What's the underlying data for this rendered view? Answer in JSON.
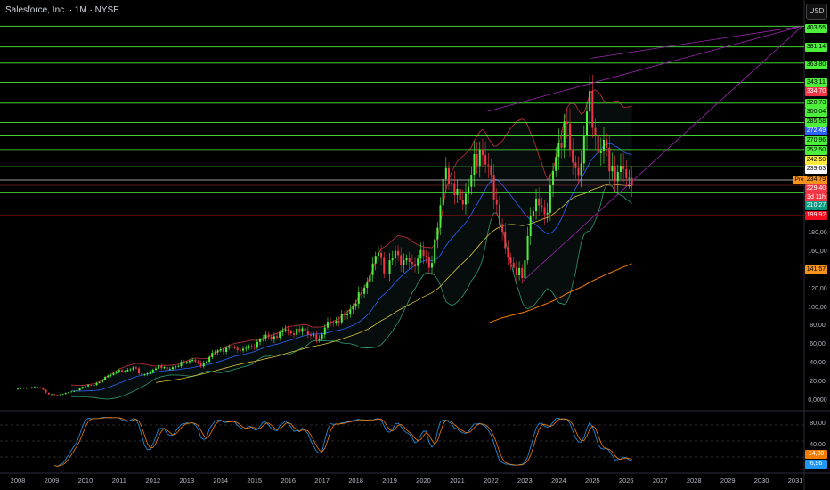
{
  "header": {
    "title": "Salesforce, Inc. · 1M · NYSE",
    "currency_button": "USD"
  },
  "chart_data": {
    "type": "candlestick",
    "title": "Salesforce, Inc. · 1M · NYSE",
    "start_year": 2008,
    "quarterly_closes": [
      14.5,
      15.5,
      15,
      8,
      7.5,
      9.5,
      11.5,
      16,
      18,
      21,
      28,
      32,
      33,
      37,
      29,
      32,
      39,
      35,
      38,
      42,
      45,
      38,
      48,
      55,
      58,
      58,
      57,
      59,
      67,
      70,
      69,
      78,
      72,
      79,
      71,
      68,
      86,
      87,
      93,
      102,
      116,
      136,
      160,
      137,
      162,
      152,
      148,
      163,
      144,
      187,
      251,
      222,
      212,
      244,
      271,
      254,
      212,
      165,
      144,
      133,
      200,
      211,
      203,
      263,
      301,
      257,
      256,
      334,
      267,
      273,
      237,
      250,
      232
    ],
    "ylim": [
      0,
      410
    ],
    "y_ticks": [
      {
        "value": 180,
        "label": "180,00"
      },
      {
        "value": 160,
        "label": "160,00"
      },
      {
        "value": 120,
        "label": "120,00"
      },
      {
        "value": 100,
        "label": "100,00"
      },
      {
        "value": 80,
        "label": "80,00"
      },
      {
        "value": 60,
        "label": "60,00"
      },
      {
        "value": 40,
        "label": "40,00"
      },
      {
        "value": 20,
        "label": "20,00"
      },
      {
        "value": 0,
        "label": "0,0000"
      }
    ],
    "x_ticks": [
      "2008",
      "2009",
      "2010",
      "2011",
      "2012",
      "2013",
      "2014",
      "2015",
      "2016",
      "2017",
      "2018",
      "2019",
      "2020",
      "2021",
      "2022",
      "2023",
      "2024",
      "2025",
      "2026",
      "2027",
      "2028",
      "2029",
      "2030",
      "2031"
    ],
    "horizontal_levels": [
      403.55,
      381.14,
      363.8,
      343.11,
      320.73,
      300.04,
      285.58,
      270.96,
      252.5,
      224.5
    ],
    "support_level": 199.92,
    "trendlines": [
      {
        "from": [
          2021.9,
          312
        ],
        "to": [
          2031.2,
          403.55
        ]
      },
      {
        "from": [
          2022.95,
          130
        ],
        "to": [
          2031.2,
          403.55
        ]
      },
      {
        "from": [
          2024.95,
          369
        ],
        "to": [
          2031.2,
          403.55
        ]
      }
    ],
    "price_labels": [
      {
        "text": "403,55",
        "bg": "#4cf03a",
        "fg": "#000"
      },
      {
        "text": "381,14",
        "bg": "#4cf03a",
        "fg": "#000"
      },
      {
        "text": "363,80",
        "bg": "#4cf03a",
        "fg": "#000"
      },
      {
        "text": "343,11",
        "bg": "#4cf03a",
        "fg": "#000"
      },
      {
        "text": "334,70",
        "bg": "#f23645",
        "fg": "#fff"
      },
      {
        "text": "320,73",
        "bg": "#4cf03a",
        "fg": "#000"
      },
      {
        "text": "300,04",
        "bg": "#4cf03a",
        "fg": "#000"
      },
      {
        "text": "285,58",
        "bg": "#4cf03a",
        "fg": "#000"
      },
      {
        "text": "272,49",
        "bg": "#2962ff",
        "fg": "#fff"
      },
      {
        "text": "270,96",
        "bg": "#4cf03a",
        "fg": "#000"
      },
      {
        "text": "252,50",
        "bg": "#4cf03a",
        "fg": "#000"
      },
      {
        "text": "242,50",
        "bg": "#ffeb3b",
        "fg": "#000"
      },
      {
        "text": "239,63",
        "bg": "#ffffff",
        "fg": "#000"
      },
      {
        "text": "234,79",
        "bg": "#f7931a",
        "fg": "#000"
      },
      {
        "text": "229,40",
        "bg": "#f23645",
        "fg": "#fff"
      },
      {
        "text": "3d 11h",
        "bg": "#f23645",
        "fg": "#fff"
      },
      {
        "text": "210,27",
        "bg": "#089981",
        "fg": "#fff"
      },
      {
        "text": "199,92",
        "bg": "#f20d1f",
        "fg": "#fff"
      }
    ],
    "pre_label": "Pre",
    "ma_label": {
      "text": "141,57",
      "bg": "#f7931a",
      "fg": "#000"
    },
    "oscillator": {
      "y_ticks": [
        {
          "value": 80,
          "label": "80,00"
        },
        {
          "value": 40,
          "label": "40,00"
        }
      ],
      "labels": [
        {
          "text": "14,00",
          "bg": "#f57c00",
          "fg": "#fff"
        },
        {
          "text": "6,96",
          "bg": "#2196f3",
          "fg": "#fff"
        }
      ]
    },
    "colors": {
      "up": "#4cf03a",
      "down": "#f23645",
      "bb_upper": "#c8303a",
      "bb_lower": "#2e9c6e",
      "basis": "#2962ff",
      "ma50": "#d4c43a",
      "ma_long": "#f57c00",
      "trend": "#9c27b0"
    }
  }
}
